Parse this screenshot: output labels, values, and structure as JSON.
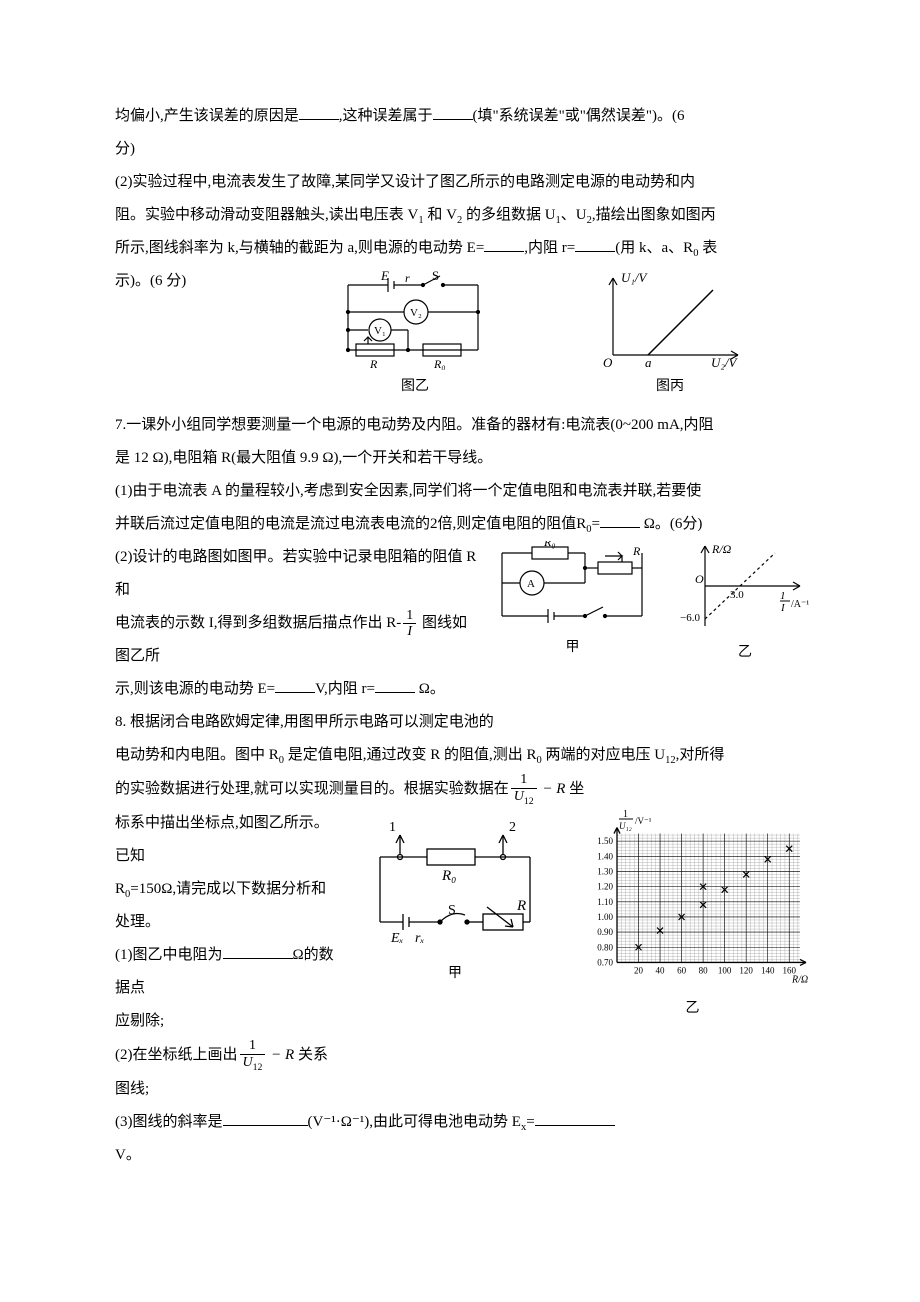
{
  "q6": {
    "p1_a": "均偏小,产生该误差的原因是",
    "p1_b": ",这种误差属于",
    "p1_c": "(填\"系统误差\"或\"偶然误差\")。(6",
    "p1_d": "分)",
    "p2_full": "(2)实验过程中,电流表发生了故障,某同学又设计了图乙所示的电路测定电源的电动势和内阻。实验中移动滑动变阻器触头,读出电压表 V₁和 V₂的多组数据 U₁、U₂,描绘出图象如图丙所示,图线斜率为 k,与横轴的截距为 a,则电源的电动势 E=____,内阻 r=____(用 k、a、R₀表示)。(6 分)",
    "p2_a": "(2)实验过程中,电流表发生了故障,某同学又设计了图乙所示的电路测定电源的电动势和内",
    "p2_b": "阻。实验中移动滑动变阻器触头,读出电压表 V",
    "p2_b2": " 和 V",
    "p2_b3": " 的多组数据 U",
    "p2_b4": "、U",
    "p2_b5": ",描绘出图象如图丙",
    "p2_c": "所示,图线斜率为 k,与横轴的截距为 a,则电源的电动势 E=",
    "p2_c2": ",内阻 r=",
    "p2_c3": "(用 k、a、R",
    "p2_c4": " 表",
    "p2_d": "示)。(6 分)",
    "fig_b": "图乙",
    "fig_c": "图丙",
    "circuit": {
      "E": "E",
      "r": "r",
      "S": "S",
      "V1": "V₁",
      "V2": "V₂",
      "R": "R",
      "R0": "R₀"
    },
    "graph": {
      "ylabel": "U₁/V",
      "xlabel": "U₂/V",
      "O": "O",
      "a": "a"
    }
  },
  "q7": {
    "p1": "7.一课外小组同学想要测量一个电源的电动势及内阻。准备的器材有:电流表(0~200 mA,内阻",
    "p1b": "是 12 Ω),电阻箱 R(最大阻值 9.9 Ω),一个开关和若干导线。",
    "p2": "(1)由于电流表 A 的量程较小,考虑到安全因素,同学们将一个定值电阻和电流表并联,若要使",
    "p2b": "并联后流过定值电阻的电流是流过电流表电流的2倍,则定值电阻的阻值R",
    "p2c": "=",
    "p2d": " Ω。(6分)",
    "p3": "(2)设计的电路图如图甲。若实验中记录电阻箱的阻值 R 和",
    "p4a": "电流表的示数 I,得到多组数据后描点作出 R-",
    "p4b": " 图线如图乙所",
    "p5a": "示,则该电源的电动势 E=",
    "p5b": "V,内阻 r=",
    "p5c": " Ω。",
    "frac_n": "1",
    "frac_d": "I",
    "fig_a": "甲",
    "fig_b": "乙",
    "circuit": {
      "R0": "R₀",
      "A": "A",
      "R": "R"
    },
    "graph": {
      "ylabel": "R/Ω",
      "xlabel_n": "1",
      "xlabel_d": "I",
      "xlabel_unit": "/A⁻¹",
      "O": "O",
      "xtick": "3.0",
      "ytick": "−6.0"
    }
  },
  "q8": {
    "p1": "8. 根据闭合电路欧姆定律,用图甲所示电路可以测定电池的",
    "p2a": "电动势和内电阻。图中 R",
    "p2b": " 是定值电阻,通过改变 R 的阻值,测出 R",
    "p2c": " 两端的对应电压 U",
    "p2d": ",对所得",
    "p3a": "的实验数据进行处理,就可以实现测量目的。根据实验数据在",
    "frac1_n": "1",
    "frac1_d": "U₁₂",
    "p3b": " − R",
    "p3c": " 坐",
    "p4": "标系中描出坐标点,如图乙所示。已知",
    "p5a": "R",
    "p5b": "=150Ω,请完成以下数据分析和处理。",
    "p6a": " (1)图乙中电阻为",
    "p6b": "Ω的数据点",
    "p7": "应剔除;",
    "p8a": "(2)在坐标纸上画出",
    "frac2_n": "1",
    "frac2_d": "U₁₂",
    "p8b": " − R",
    "p8c": " 关系图线;",
    "p9a": "(3)图线的斜率是",
    "p9b": "(V⁻¹·Ω⁻¹),由此可得电池电动势 E",
    "p9c": "=",
    "p10": "V。",
    "fig_a": "甲",
    "fig_b": "乙",
    "circuit": {
      "n1": "1",
      "n2": "2",
      "R0": "R₀",
      "Ex": "Eₓ",
      "rx": "rₓ",
      "S": "S",
      "R": "R"
    },
    "graph": {
      "ylabel_n": "1",
      "ylabel_d": "U₁₂",
      "ylabel_unit": "/V⁻¹",
      "xlabel": "R/Ω",
      "yticks": [
        "0.70",
        "0.80",
        "0.90",
        "1.00",
        "1.10",
        "1.20",
        "1.30",
        "1.40",
        "1.50"
      ],
      "xticks": [
        "20",
        "40",
        "60",
        "80",
        "100",
        "120",
        "140",
        "160"
      ],
      "points": [
        {
          "x": 20,
          "y": 0.8
        },
        {
          "x": 40,
          "y": 0.91
        },
        {
          "x": 60,
          "y": 1.0
        },
        {
          "x": 80,
          "y": 1.08
        },
        {
          "x": 80,
          "y": 1.2
        },
        {
          "x": 100,
          "y": 1.18
        },
        {
          "x": 120,
          "y": 1.28
        },
        {
          "x": 140,
          "y": 1.38
        },
        {
          "x": 160,
          "y": 1.45
        }
      ],
      "xmin": 0,
      "xmax": 170,
      "ymin": 0.65,
      "ymax": 1.58,
      "grid_color": "#888888",
      "bg": "#ffffff",
      "point_color": "#000000"
    }
  }
}
